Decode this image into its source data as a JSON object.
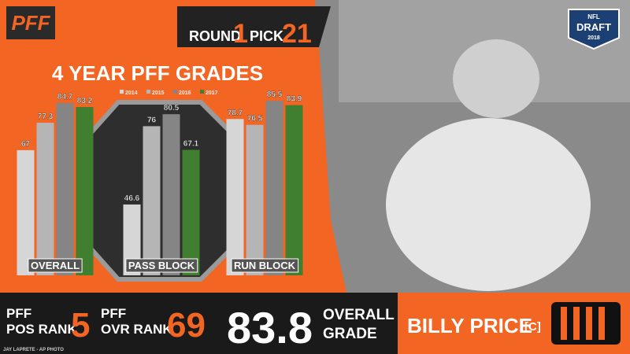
{
  "header": {
    "logo": "PFF",
    "round_label": "ROUND",
    "round": 1,
    "pick_label": "PICK",
    "pick": 21,
    "badge": {
      "league": "NFL",
      "event": "DRAFT",
      "year": 2018
    }
  },
  "chart_data": {
    "type": "bar",
    "title": "4 YEAR PFF GRADES",
    "categories": [
      "OVERALL",
      "PASS BLOCK",
      "RUN BLOCK"
    ],
    "series": [
      {
        "name": "2014",
        "color": "#d6d6d6",
        "values": [
          67,
          46.6,
          78.7
        ]
      },
      {
        "name": "2015",
        "color": "#b5b5b5",
        "values": [
          77.3,
          76,
          76.5
        ]
      },
      {
        "name": "2016",
        "color": "#858585",
        "values": [
          84.7,
          80.5,
          85.5
        ]
      },
      {
        "name": "2017",
        "color": "#3f7f2f",
        "values": [
          83.2,
          67.1,
          83.9
        ]
      }
    ],
    "ylim": [
      20,
      90
    ]
  },
  "footer": {
    "pos_rank_label_top": "PFF",
    "pos_rank_label_bottom": "POS RANK",
    "pos_rank": 5,
    "ovr_rank_label_top": "PFF",
    "ovr_rank_label_bottom": "OVR RANK",
    "ovr_rank": 69,
    "grade": 83.8,
    "grade_label_top": "OVERALL",
    "grade_label_bottom": "GRADE",
    "player": "BILLY PRICE",
    "position": "[C]",
    "credit": "JAY LAPRETE - AP PHOTO"
  }
}
